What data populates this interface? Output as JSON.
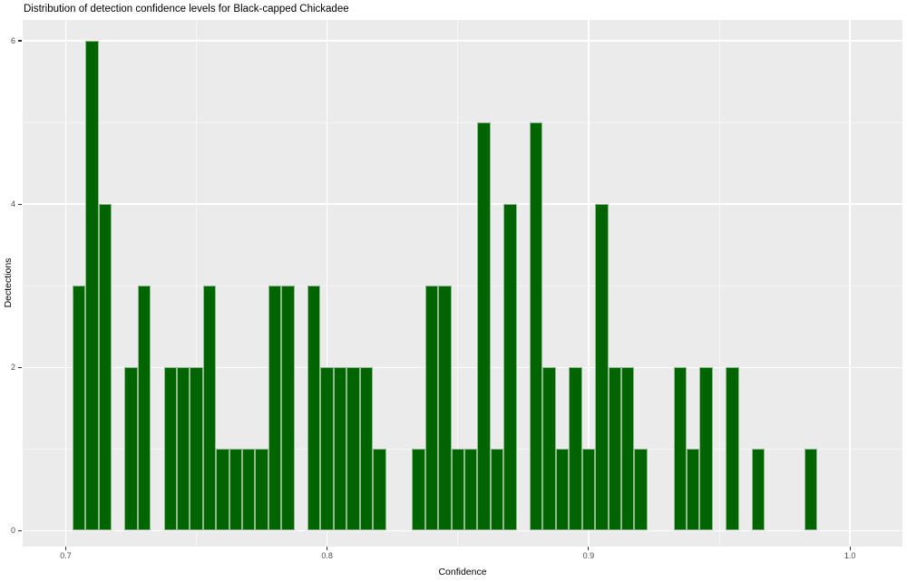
{
  "title": "Distribution of detection confidence levels for Black-capped Chickadee",
  "chart_data": {
    "type": "bar",
    "subtype": "histogram",
    "title": "Distribution of detection confidence levels for Black-capped Chickadee",
    "xlabel": "Confidence",
    "ylabel": "Dectections",
    "legend": "none",
    "grid": "on",
    "panel_bg": "#EBEBEB",
    "grid_color": "#FFFFFF",
    "bar_fill": "#006400",
    "bar_border": "#8FBC8F",
    "tick_label_color": "#4D4D4D",
    "tick_mark_color": "#333333",
    "xlim": [
      0.683518,
      1.02009
    ],
    "ylim": [
      -0.1943,
      6.2556
    ],
    "x_ticks": [
      0.7,
      0.8,
      0.9,
      1.0
    ],
    "x_tick_labels": [
      "0.7",
      "0.8",
      "0.9",
      "1.0"
    ],
    "x_minor_ticks": [
      0.75,
      0.85,
      0.95
    ],
    "y_ticks": [
      0,
      2,
      4,
      6
    ],
    "y_tick_labels": [
      "0",
      "2",
      "4",
      "6"
    ],
    "y_minor_ticks": [
      1,
      3,
      5
    ],
    "binwidth": 0.005,
    "bins": [
      {
        "x": 0.705,
        "count": 3
      },
      {
        "x": 0.71,
        "count": 6
      },
      {
        "x": 0.715,
        "count": 4
      },
      {
        "x": 0.725,
        "count": 2
      },
      {
        "x": 0.73,
        "count": 3
      },
      {
        "x": 0.74,
        "count": 2
      },
      {
        "x": 0.745,
        "count": 2
      },
      {
        "x": 0.75,
        "count": 2
      },
      {
        "x": 0.755,
        "count": 3
      },
      {
        "x": 0.76,
        "count": 1
      },
      {
        "x": 0.765,
        "count": 1
      },
      {
        "x": 0.77,
        "count": 1
      },
      {
        "x": 0.775,
        "count": 1
      },
      {
        "x": 0.78,
        "count": 3
      },
      {
        "x": 0.785,
        "count": 3
      },
      {
        "x": 0.795,
        "count": 3
      },
      {
        "x": 0.8,
        "count": 2
      },
      {
        "x": 0.805,
        "count": 2
      },
      {
        "x": 0.81,
        "count": 2
      },
      {
        "x": 0.815,
        "count": 2
      },
      {
        "x": 0.82,
        "count": 1
      },
      {
        "x": 0.835,
        "count": 1
      },
      {
        "x": 0.84,
        "count": 3
      },
      {
        "x": 0.845,
        "count": 3
      },
      {
        "x": 0.85,
        "count": 1
      },
      {
        "x": 0.855,
        "count": 1
      },
      {
        "x": 0.86,
        "count": 5
      },
      {
        "x": 0.865,
        "count": 1
      },
      {
        "x": 0.87,
        "count": 4
      },
      {
        "x": 0.88,
        "count": 5
      },
      {
        "x": 0.885,
        "count": 2
      },
      {
        "x": 0.89,
        "count": 1
      },
      {
        "x": 0.895,
        "count": 2
      },
      {
        "x": 0.9,
        "count": 1
      },
      {
        "x": 0.905,
        "count": 4
      },
      {
        "x": 0.91,
        "count": 2
      },
      {
        "x": 0.915,
        "count": 2
      },
      {
        "x": 0.92,
        "count": 1
      },
      {
        "x": 0.935,
        "count": 2
      },
      {
        "x": 0.94,
        "count": 1
      },
      {
        "x": 0.945,
        "count": 2
      },
      {
        "x": 0.955,
        "count": 2
      },
      {
        "x": 0.965,
        "count": 1
      },
      {
        "x": 0.985,
        "count": 1
      }
    ]
  }
}
